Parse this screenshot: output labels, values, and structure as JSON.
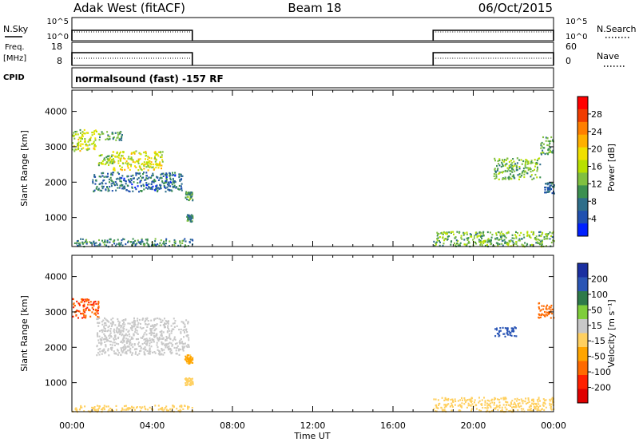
{
  "header": {
    "station": "Adak West (fitACF)",
    "beam": "Beam 18",
    "date": "06/Oct/2015"
  },
  "panels": {
    "nsky": {
      "label": "N.Sky",
      "left_ticks": [
        "10^5",
        "10^0"
      ],
      "right_label": "N.Search",
      "right_ticks": [
        "10^5",
        "10^0"
      ]
    },
    "freq": {
      "label_lines": [
        "Freq.",
        "[MHz]"
      ],
      "cpid_label": "CPID",
      "left_ticks": [
        "18",
        "8"
      ],
      "right_label": "Nave",
      "right_ticks": [
        "60",
        "0"
      ]
    },
    "cpid_text": "normalsound (fast) -157 RF"
  },
  "axes": {
    "ylabel": "Slant Range [km]",
    "xlabel": "Time UT",
    "yticks": [
      "4000",
      "3000",
      "2000",
      "1000"
    ],
    "xticks": [
      "00:00",
      "04:00",
      "08:00",
      "12:00",
      "16:00",
      "20:00",
      "00:00"
    ]
  },
  "colorbars": {
    "power": {
      "label": "Power [dB]",
      "ticks": [
        "28",
        "24",
        "20",
        "16",
        "12",
        "8",
        "4"
      ],
      "colors": [
        "#ff0000",
        "#f03c00",
        "#ff7f00",
        "#ffb000",
        "#f0e000",
        "#b8e000",
        "#80c040",
        "#3c9050",
        "#2e6e8a",
        "#2050b0",
        "#0020ff"
      ]
    },
    "velocity": {
      "label": "Velocity [m s⁻¹]",
      "ticks": [
        "200",
        "100",
        "50",
        "15",
        "-15",
        "-50",
        "-100",
        "-200"
      ],
      "colors": [
        "#1a2fa0",
        "#2a55b5",
        "#2e7a4a",
        "#7fce3a",
        "#c8c8c8",
        "#ffd060",
        "#ffa500",
        "#ff6a00",
        "#ff2000",
        "#e00000"
      ]
    }
  },
  "chart_data": {
    "type": "heatmap",
    "title": "Adak West (fitACF) Beam 18 06/Oct/2015",
    "xlabel": "Time UT",
    "ylabel": "Slant Range [km]",
    "xlim_hours": [
      0,
      24
    ],
    "ylim_km": [
      180,
      4600
    ],
    "operating_periods_ut_hours": [
      [
        0,
        6
      ],
      [
        18,
        24
      ]
    ],
    "power_echo_regions": [
      {
        "t": [
          0.0,
          1.2
        ],
        "km": [
          2900,
          3500
        ],
        "power_db": 16
      },
      {
        "t": [
          1.2,
          2.5
        ],
        "km": [
          3200,
          3450
        ],
        "power_db": 10
      },
      {
        "t": [
          1.3,
          2.1
        ],
        "km": [
          2500,
          2800
        ],
        "power_db": 14
      },
      {
        "t": [
          2.0,
          4.5
        ],
        "km": [
          2350,
          2900
        ],
        "power_db": 18
      },
      {
        "t": [
          1.0,
          5.5
        ],
        "km": [
          1750,
          2300
        ],
        "power_db": 6
      },
      {
        "t": [
          5.6,
          6.0
        ],
        "km": [
          1500,
          1750
        ],
        "power_db": 10
      },
      {
        "t": [
          5.7,
          6.0
        ],
        "km": [
          900,
          1100
        ],
        "power_db": 8
      },
      {
        "t": [
          0.0,
          6.0
        ],
        "km": [
          200,
          420
        ],
        "power_db": 8
      },
      {
        "t": [
          18.0,
          24.0
        ],
        "km": [
          200,
          620
        ],
        "power_db": 12
      },
      {
        "t": [
          21.0,
          23.3
        ],
        "km": [
          2100,
          2700
        ],
        "power_db": 12
      },
      {
        "t": [
          23.3,
          24.0
        ],
        "km": [
          2800,
          3300
        ],
        "power_db": 10
      },
      {
        "t": [
          23.5,
          24.0
        ],
        "km": [
          1700,
          2000
        ],
        "power_db": 5
      }
    ],
    "velocity_echo_regions": [
      {
        "t": [
          0.0,
          1.3
        ],
        "km": [
          2850,
          3400
        ],
        "velocity_ms": -200
      },
      {
        "t": [
          1.2,
          5.8
        ],
        "km": [
          1800,
          2850
        ],
        "velocity_ms": 0
      },
      {
        "t": [
          5.6,
          6.0
        ],
        "km": [
          1550,
          1800
        ],
        "velocity_ms": -60
      },
      {
        "t": [
          5.6,
          6.0
        ],
        "km": [
          950,
          1150
        ],
        "velocity_ms": -30
      },
      {
        "t": [
          0.0,
          6.0
        ],
        "km": [
          200,
          380
        ],
        "velocity_ms": -30
      },
      {
        "t": [
          18.0,
          24.0
        ],
        "km": [
          200,
          600
        ],
        "velocity_ms": -30
      },
      {
        "t": [
          21.0,
          22.2
        ],
        "km": [
          2300,
          2600
        ],
        "velocity_ms": 120
      },
      {
        "t": [
          23.2,
          24.0
        ],
        "km": [
          2850,
          3300
        ],
        "velocity_ms": -150
      }
    ]
  }
}
